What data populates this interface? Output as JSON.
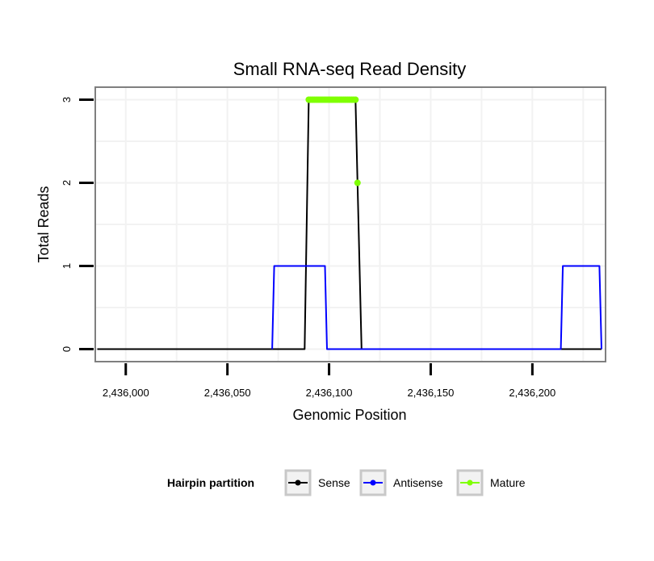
{
  "chart_data": {
    "type": "line",
    "title": "Small RNA-seq Read Density",
    "xlabel": "Genomic Position",
    "ylabel": "Total Reads",
    "xlim": [
      2435985,
      2436236
    ],
    "ylim": [
      -0.15,
      3.15
    ],
    "x_ticks": [
      2436000,
      2436050,
      2436100,
      2436150,
      2436200
    ],
    "x_tick_labels": [
      "2,436,000",
      "2,436,050",
      "2,436,100",
      "2,436,150",
      "2,436,200"
    ],
    "y_ticks": [
      0,
      1,
      2,
      3
    ],
    "y_tick_labels": [
      "0",
      "1",
      "2",
      "3"
    ],
    "grid": true,
    "legend_position": "bottom",
    "legend_title": "Hairpin partition",
    "series": [
      {
        "name": "Sense",
        "color": "#000000",
        "kind": "line",
        "x": [
          2435986,
          2436088,
          2436090,
          2436113,
          2436116,
          2436234
        ],
        "y": [
          0,
          0,
          3,
          3,
          0,
          0
        ]
      },
      {
        "name": "Antisense",
        "color": "#0000ff",
        "kind": "line",
        "x": [
          2436072,
          2436073,
          2436098,
          2436099,
          2436116,
          2436214,
          2436215,
          2436233,
          2436234
        ],
        "y": [
          0,
          1,
          1,
          0,
          0,
          0,
          1,
          1,
          0
        ]
      },
      {
        "name": "Mature",
        "color": "#7fff00",
        "kind": "points",
        "x": [
          2436090,
          2436091,
          2436092,
          2436093,
          2436094,
          2436095,
          2436096,
          2436097,
          2436098,
          2436099,
          2436100,
          2436101,
          2436102,
          2436103,
          2436104,
          2436105,
          2436106,
          2436107,
          2436108,
          2436109,
          2436110,
          2436111,
          2436112,
          2436113,
          2436114
        ],
        "y": [
          3,
          3,
          3,
          3,
          3,
          3,
          3,
          3,
          3,
          3,
          3,
          3,
          3,
          3,
          3,
          3,
          3,
          3,
          3,
          3,
          3,
          3,
          3,
          3,
          2
        ]
      }
    ]
  }
}
